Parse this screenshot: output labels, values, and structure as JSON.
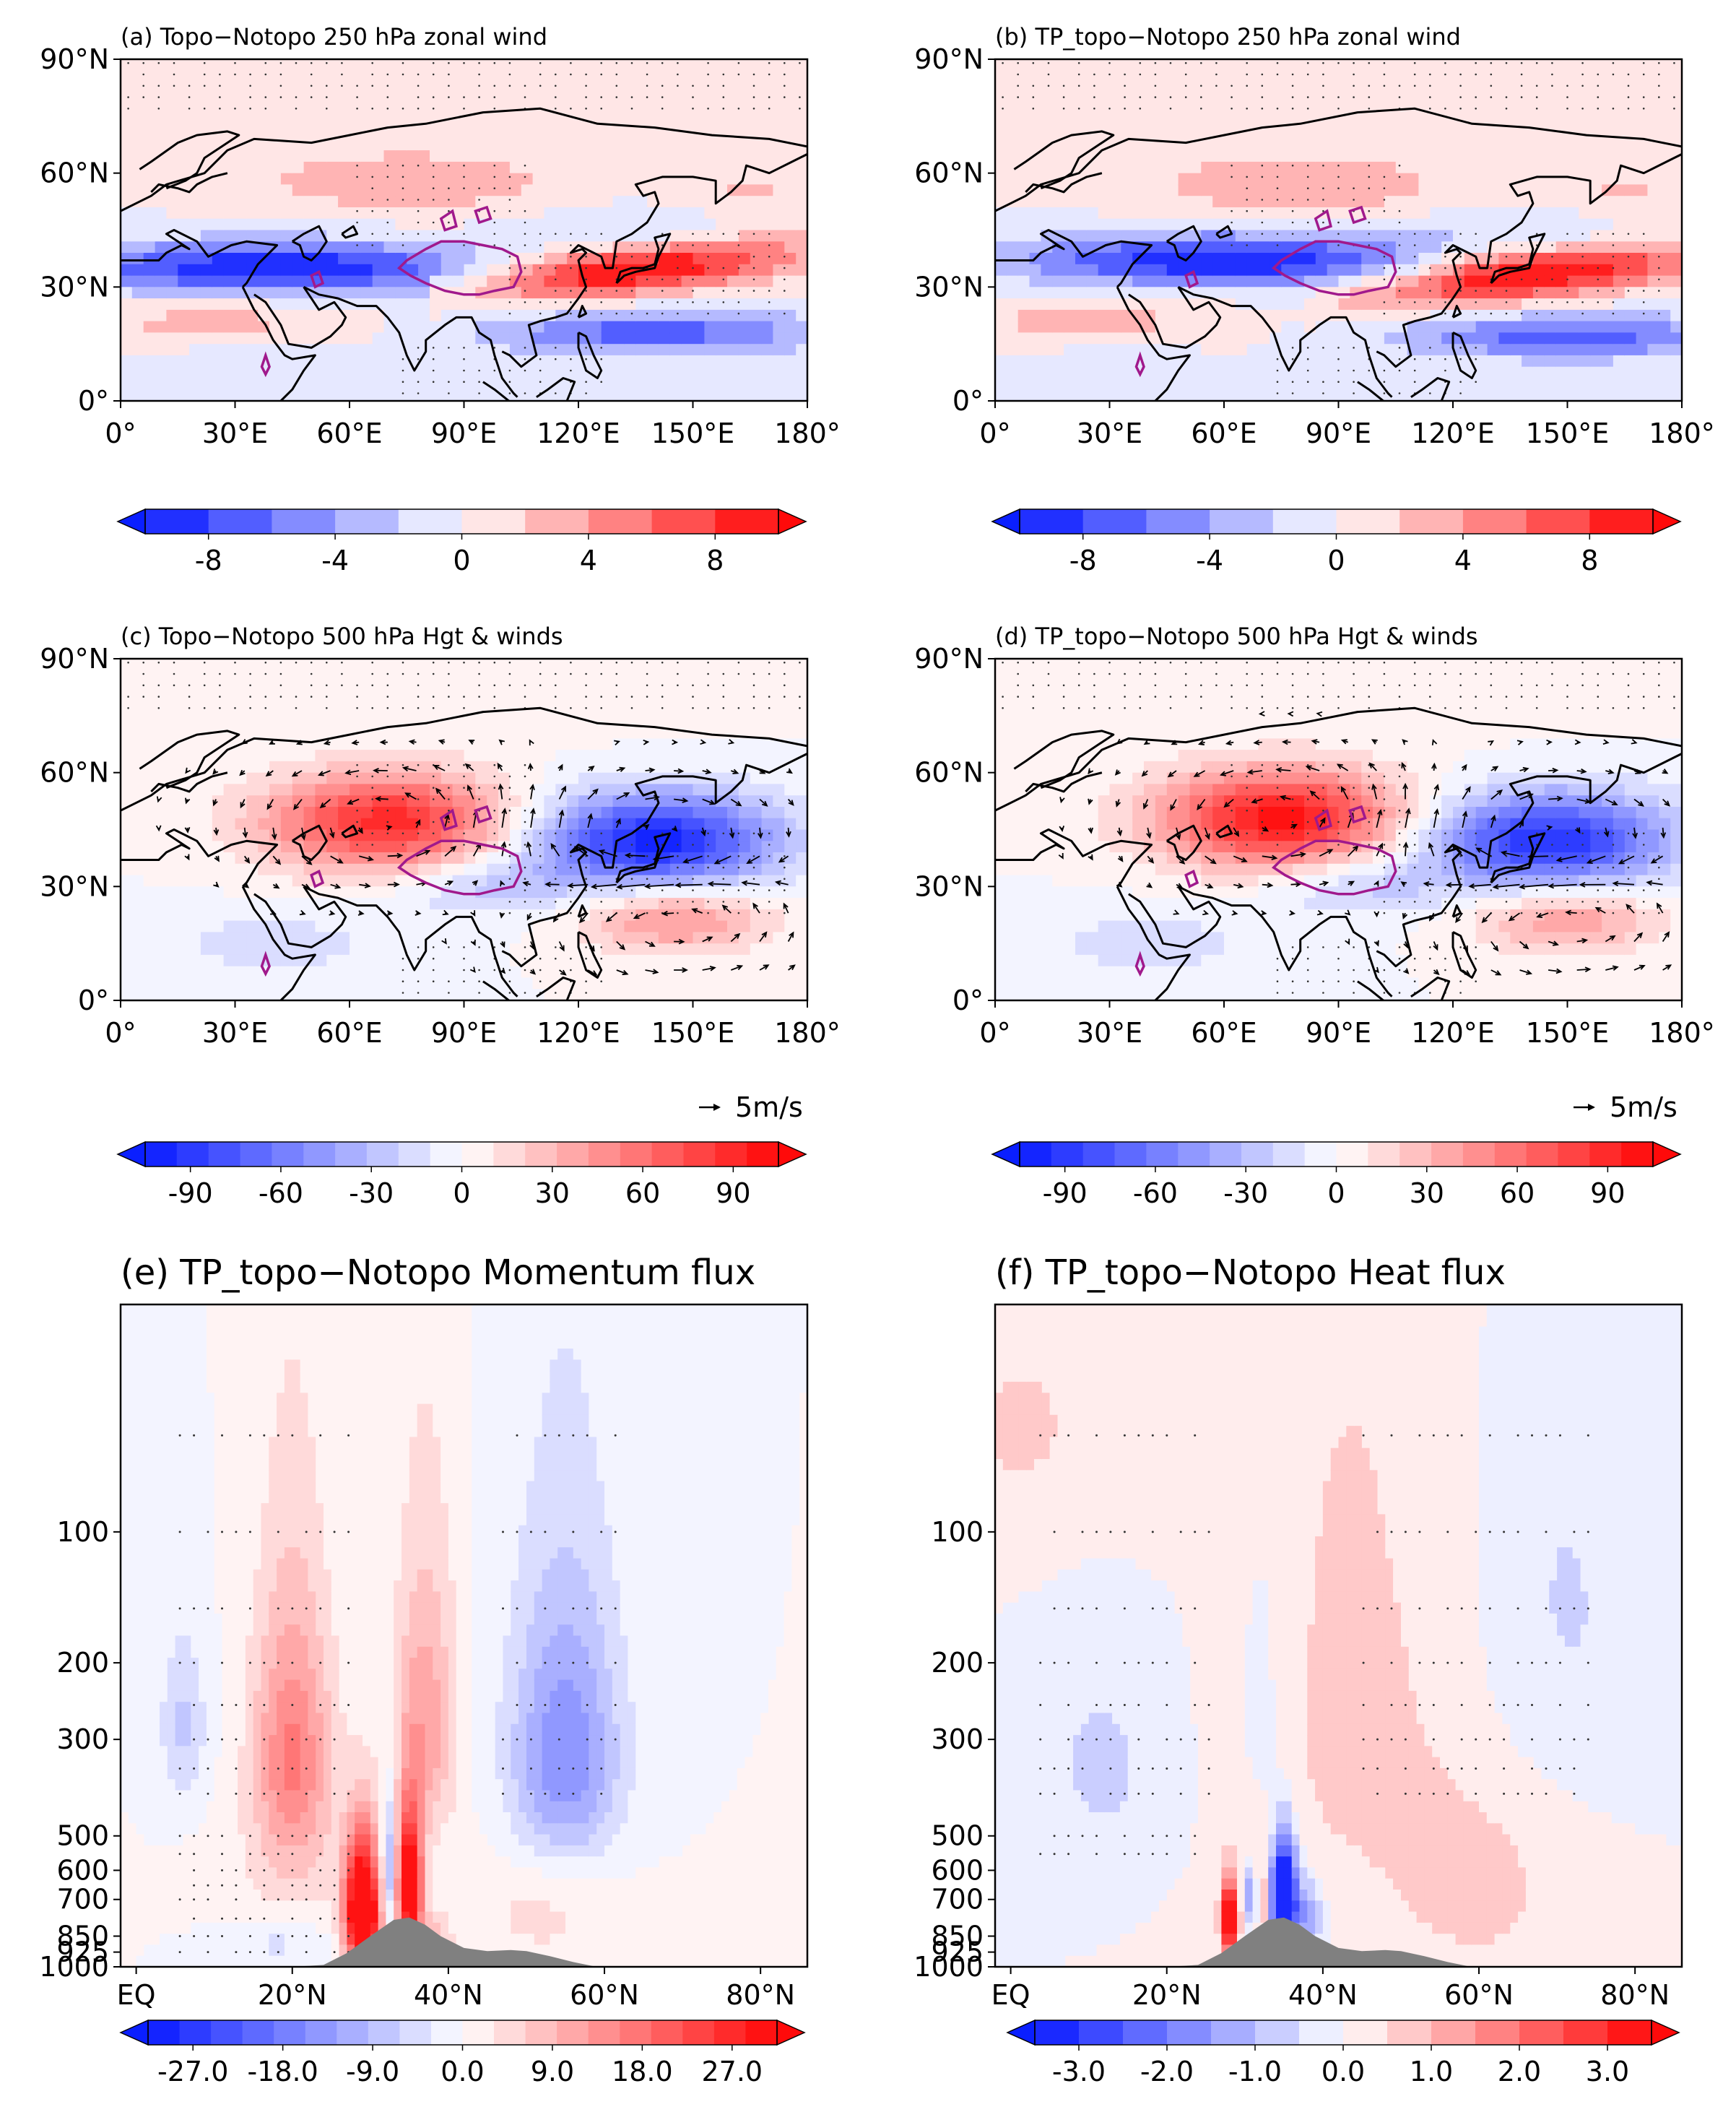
{
  "figure": {
    "colors": {
      "blue_strong": "#0a1fff",
      "red_strong": "#ff0a0a",
      "terrain": "#808080",
      "coast": "#000000",
      "tp_contour": "#a0198c"
    }
  },
  "chart_data": [
    {
      "id": "a",
      "type": "heatmap",
      "title": "(a) Topo−Notopo 250 hPa zonal wind",
      "xlim": [
        0,
        180
      ],
      "ylim": [
        0,
        90
      ],
      "xticks": [
        "0°",
        "30°E",
        "60°E",
        "90°E",
        "120°E",
        "150°E",
        "180°"
      ],
      "yticks": [
        "0°",
        "30°N",
        "60°N",
        "90°N"
      ],
      "colorbar": {
        "ticks": [
          "-8",
          "-4",
          "0",
          "4",
          "8"
        ],
        "min": -10,
        "max": 10,
        "nlevels": 10
      },
      "features": [
        {
          "name": "westerly decrease",
          "sign": -1,
          "lon": 40,
          "lat": 35,
          "amp": 10
        },
        {
          "name": "jet acceleration",
          "sign": 1,
          "lon": 135,
          "lat": 32,
          "amp": 10
        },
        {
          "name": "high-lat increase",
          "sign": 1,
          "lon": 75,
          "lat": 58,
          "amp": 4
        },
        {
          "name": "subtropical decrease",
          "sign": -1,
          "lon": 140,
          "lat": 18,
          "amp": 7
        }
      ]
    },
    {
      "id": "b",
      "type": "heatmap",
      "title": "(b) TP_topo−Notopo 250 hPa zonal wind",
      "xlim": [
        0,
        180
      ],
      "ylim": [
        0,
        90
      ],
      "xticks": [
        "0°",
        "30°E",
        "60°E",
        "90°E",
        "120°E",
        "150°E",
        "180°"
      ],
      "yticks": [
        "0°",
        "30°N",
        "60°N",
        "90°N"
      ],
      "colorbar": {
        "ticks": [
          "-8",
          "-4",
          "0",
          "4",
          "8"
        ],
        "min": -10,
        "max": 10,
        "nlevels": 10
      },
      "features": [
        {
          "name": "westerly decrease",
          "sign": -1,
          "lon": 60,
          "lat": 37,
          "amp": 10
        },
        {
          "name": "jet acceleration",
          "sign": 1,
          "lon": 140,
          "lat": 30,
          "amp": 10
        },
        {
          "name": "high-lat increase",
          "sign": 1,
          "lon": 80,
          "lat": 57,
          "amp": 4
        },
        {
          "name": "subtropical decrease",
          "sign": -1,
          "lon": 150,
          "lat": 17,
          "amp": 7
        }
      ]
    },
    {
      "id": "c",
      "type": "heatmap",
      "title": "(c) Topo−Notopo 500 hPa Hgt & winds",
      "xlim": [
        0,
        180
      ],
      "ylim": [
        0,
        90
      ],
      "xticks": [
        "0°",
        "30°E",
        "60°E",
        "90°E",
        "120°E",
        "150°E",
        "180°"
      ],
      "yticks": [
        "0°",
        "30°N",
        "60°N",
        "90°N"
      ],
      "vector_ref": "5m/s",
      "colorbar": {
        "ticks": [
          "-90",
          "-60",
          "-30",
          "0",
          "30",
          "60",
          "90"
        ],
        "min": -105,
        "max": 105,
        "nlevels": 20
      },
      "features": [
        {
          "name": "high anomaly",
          "sign": 1,
          "lon": 70,
          "lat": 47,
          "amp": 90
        },
        {
          "name": "low anomaly",
          "sign": -1,
          "lon": 140,
          "lat": 42,
          "amp": 100
        },
        {
          "name": "subtropical high",
          "sign": 1,
          "lon": 145,
          "lat": 22,
          "amp": 50
        }
      ]
    },
    {
      "id": "d",
      "type": "heatmap",
      "title": "(d) TP_topo−Notopo 500 hPa Hgt & winds",
      "xlim": [
        0,
        180
      ],
      "ylim": [
        0,
        90
      ],
      "xticks": [
        "0°",
        "30°E",
        "60°E",
        "90°E",
        "120°E",
        "150°E",
        "180°"
      ],
      "yticks": [
        "0°",
        "30°N",
        "60°N",
        "90°N"
      ],
      "vector_ref": "5m/s",
      "colorbar": {
        "ticks": [
          "-90",
          "-60",
          "-30",
          "0",
          "30",
          "60",
          "90"
        ],
        "min": -105,
        "max": 105,
        "nlevels": 20
      },
      "features": [
        {
          "name": "high anomaly",
          "sign": 1,
          "lon": 75,
          "lat": 48,
          "amp": 100
        },
        {
          "name": "low anomaly",
          "sign": -1,
          "lon": 145,
          "lat": 42,
          "amp": 95
        },
        {
          "name": "subtropical high",
          "sign": 1,
          "lon": 150,
          "lat": 22,
          "amp": 45
        }
      ]
    },
    {
      "id": "e",
      "type": "heatmap",
      "title": "(e) TP_topo−Notopo Momentum flux",
      "xlim": [
        -2,
        86
      ],
      "ylim_hPa": [
        1000,
        30
      ],
      "xticks": [
        "EQ",
        "20°N",
        "40°N",
        "60°N",
        "80°N"
      ],
      "yticks": [
        "100",
        "200",
        "300",
        "500",
        "600",
        "700",
        "850",
        "925",
        "1000"
      ],
      "colorbar": {
        "ticks": [
          "-27.0",
          "-18.0",
          "-9.0",
          "0.0",
          "9.0",
          "18.0",
          "27.0"
        ],
        "min": -31.5,
        "max": 31.5,
        "nlevels": 20
      },
      "terrain_profile": [
        [
          20,
          1000
        ],
        [
          24,
          990
        ],
        [
          27,
          930
        ],
        [
          30,
          850
        ],
        [
          33,
          780
        ],
        [
          35,
          770
        ],
        [
          37,
          800
        ],
        [
          39,
          850
        ],
        [
          42,
          905
        ],
        [
          45,
          920
        ],
        [
          48,
          915
        ],
        [
          50,
          920
        ],
        [
          53,
          945
        ],
        [
          56,
          975
        ],
        [
          59,
          1000
        ]
      ]
    },
    {
      "id": "f",
      "type": "heatmap",
      "title": "(f) TP_topo−Notopo Heat flux",
      "xlim": [
        -2,
        86
      ],
      "ylim_hPa": [
        1000,
        30
      ],
      "xticks": [
        "EQ",
        "20°N",
        "40°N",
        "60°N",
        "80°N"
      ],
      "yticks": [
        "100",
        "200",
        "300",
        "500",
        "600",
        "700",
        "850",
        "925",
        "1000"
      ],
      "colorbar": {
        "ticks": [
          "-3.0",
          "-2.0",
          "-1.0",
          "0.0",
          "1.0",
          "2.0",
          "3.0"
        ],
        "min": -3.5,
        "max": 3.5,
        "nlevels": 14
      },
      "terrain_profile": [
        [
          20,
          1000
        ],
        [
          24,
          990
        ],
        [
          27,
          930
        ],
        [
          30,
          850
        ],
        [
          33,
          780
        ],
        [
          35,
          770
        ],
        [
          37,
          800
        ],
        [
          39,
          850
        ],
        [
          42,
          905
        ],
        [
          45,
          920
        ],
        [
          48,
          915
        ],
        [
          50,
          920
        ],
        [
          53,
          945
        ],
        [
          56,
          975
        ],
        [
          59,
          1000
        ]
      ]
    }
  ]
}
